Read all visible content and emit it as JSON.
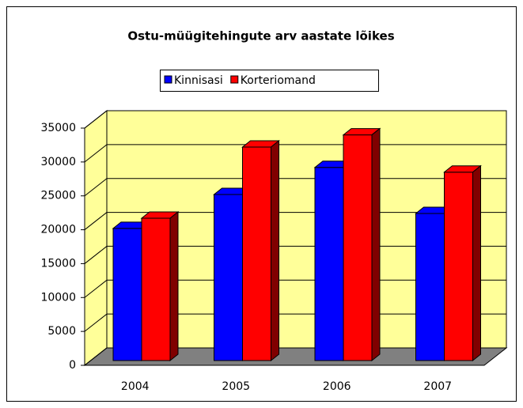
{
  "chart_data": {
    "type": "bar3d",
    "title": "Ostu-müügitehingute arv aastate lõikes",
    "categories": [
      "2004",
      "2005",
      "2006",
      "2007"
    ],
    "series": [
      {
        "name": "Kinnisasi",
        "color": "#0000ff",
        "values": [
          19500,
          24500,
          28500,
          21700
        ]
      },
      {
        "name": "Korteriomand",
        "color": "#ff0000",
        "values": [
          21000,
          31500,
          33300,
          27800
        ]
      }
    ],
    "ylim": [
      0,
      35000
    ],
    "yticks": [
      0,
      5000,
      10000,
      15000,
      20000,
      25000,
      30000,
      35000
    ],
    "grid": true,
    "legend": "top"
  }
}
